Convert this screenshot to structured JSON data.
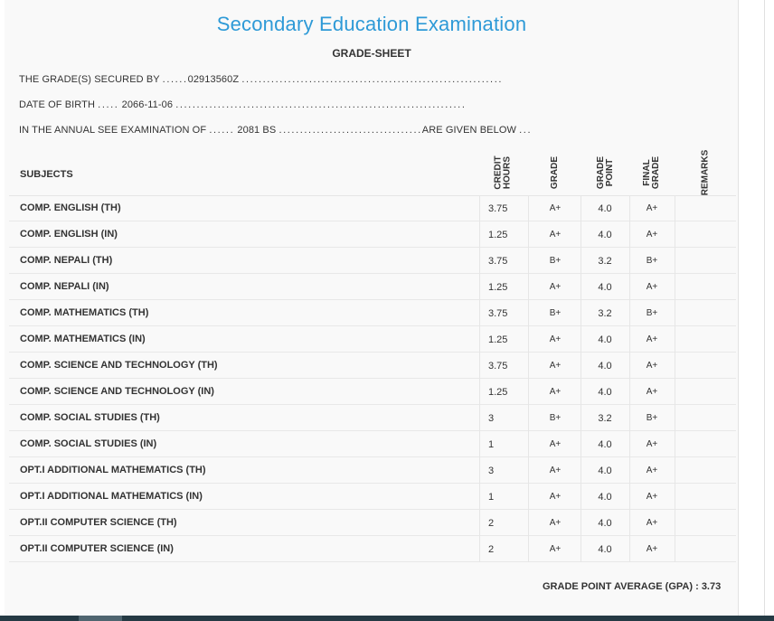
{
  "title": "Secondary Education Examination",
  "subtitle": "GRADE-SHEET",
  "info": {
    "secured_prefix": "THE GRADE(S) SECURED BY",
    "secured_dots_before": "......",
    "secured_value": "02913560Z",
    "secured_dots_after": "..............................................................",
    "dob_prefix": "DATE OF BIRTH",
    "dob_dots_before": ".....",
    "dob_value": "2066-11-06",
    "dob_dots_after": ".....................................................................",
    "exam_prefix": "IN THE ANNUAL SEE EXAMINATION OF",
    "exam_dots_before": "......",
    "exam_value": "2081 BS",
    "exam_dots_after": "..................................",
    "exam_suffix": "ARE GIVEN BELOW",
    "exam_suffix_dots": "..."
  },
  "table": {
    "headers": {
      "subjects": "SUBJECTS",
      "credit_hours": "CREDIT\nHOURS",
      "grade": "GRADE",
      "grade_point": "GRADE\nPOINT",
      "final_grade": "FINAL\nGRADE",
      "remarks": "REMARKS"
    },
    "rows": [
      {
        "subject": "COMP. ENGLISH (TH)",
        "credit": "3.75",
        "grade": "A+",
        "point": "4.0",
        "final": "A+",
        "remarks": ""
      },
      {
        "subject": "COMP. ENGLISH (IN)",
        "credit": "1.25",
        "grade": "A+",
        "point": "4.0",
        "final": "A+",
        "remarks": ""
      },
      {
        "subject": "COMP. NEPALI (TH)",
        "credit": "3.75",
        "grade": "B+",
        "point": "3.2",
        "final": "B+",
        "remarks": ""
      },
      {
        "subject": "COMP. NEPALI (IN)",
        "credit": "1.25",
        "grade": "A+",
        "point": "4.0",
        "final": "A+",
        "remarks": ""
      },
      {
        "subject": "COMP. MATHEMATICS (TH)",
        "credit": "3.75",
        "grade": "B+",
        "point": "3.2",
        "final": "B+",
        "remarks": ""
      },
      {
        "subject": "COMP. MATHEMATICS (IN)",
        "credit": "1.25",
        "grade": "A+",
        "point": "4.0",
        "final": "A+",
        "remarks": ""
      },
      {
        "subject": "COMP. SCIENCE AND TECHNOLOGY (TH)",
        "credit": "3.75",
        "grade": "A+",
        "point": "4.0",
        "final": "A+",
        "remarks": ""
      },
      {
        "subject": "COMP. SCIENCE AND TECHNOLOGY (IN)",
        "credit": "1.25",
        "grade": "A+",
        "point": "4.0",
        "final": "A+",
        "remarks": ""
      },
      {
        "subject": "COMP. SOCIAL STUDIES (TH)",
        "credit": "3",
        "grade": "B+",
        "point": "3.2",
        "final": "B+",
        "remarks": ""
      },
      {
        "subject": "COMP. SOCIAL STUDIES (IN)",
        "credit": "1",
        "grade": "A+",
        "point": "4.0",
        "final": "A+",
        "remarks": ""
      },
      {
        "subject": "OPT.I ADDITIONAL MATHEMATICS (TH)",
        "credit": "3",
        "grade": "A+",
        "point": "4.0",
        "final": "A+",
        "remarks": ""
      },
      {
        "subject": "OPT.I ADDITIONAL MATHEMATICS (IN)",
        "credit": "1",
        "grade": "A+",
        "point": "4.0",
        "final": "A+",
        "remarks": ""
      },
      {
        "subject": "OPT.II COMPUTER SCIENCE (TH)",
        "credit": "2",
        "grade": "A+",
        "point": "4.0",
        "final": "A+",
        "remarks": ""
      },
      {
        "subject": "OPT.II COMPUTER SCIENCE (IN)",
        "credit": "2",
        "grade": "A+",
        "point": "4.0",
        "final": "A+",
        "remarks": ""
      }
    ]
  },
  "gpa": {
    "label": "GRADE POINT AVERAGE (GPA) :",
    "value": "3.73"
  },
  "colors": {
    "title": "#2e9ad7",
    "page_background": "#f9f9f9",
    "bottom_bar": "#253a44"
  }
}
